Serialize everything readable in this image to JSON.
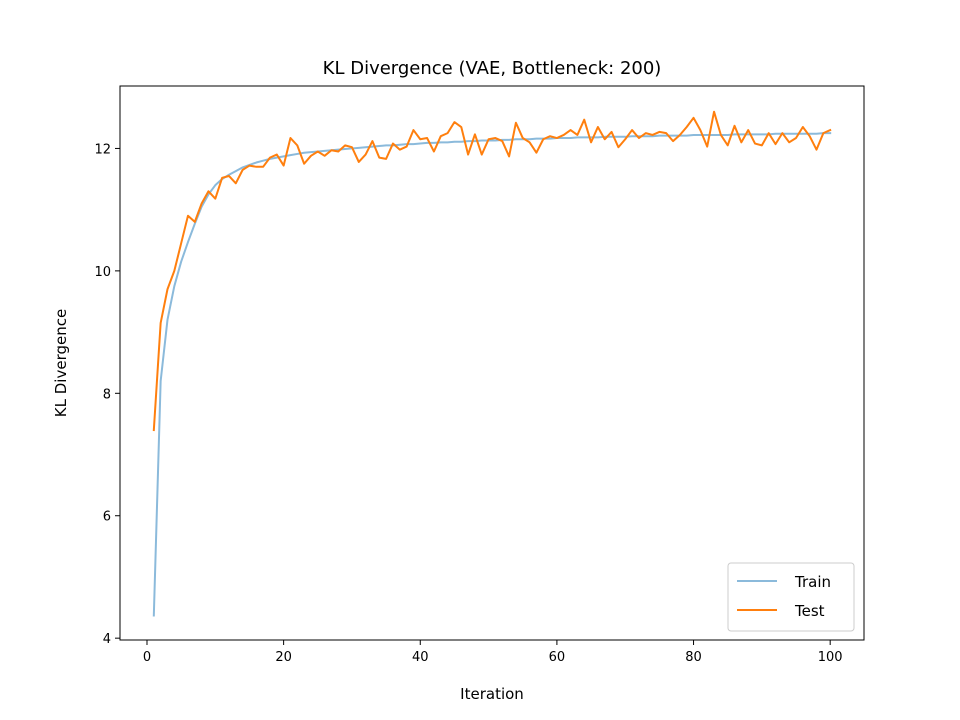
{
  "chart_data": {
    "type": "line",
    "title": "KL Divergence (VAE, Bottleneck: 200)",
    "xlabel": "Iteration",
    "ylabel": "KL Divergence",
    "xlim": [
      -3.95,
      104.95
    ],
    "ylim": [
      3.97,
      13.02
    ],
    "xticks": [
      0,
      20,
      40,
      60,
      80,
      100
    ],
    "yticks": [
      4,
      6,
      8,
      10,
      12
    ],
    "grid": false,
    "legend_position": "lower-right",
    "x": [
      1,
      2,
      3,
      4,
      5,
      6,
      7,
      8,
      9,
      10,
      11,
      12,
      13,
      14,
      15,
      16,
      17,
      18,
      19,
      20,
      21,
      22,
      23,
      24,
      25,
      26,
      27,
      28,
      29,
      30,
      31,
      32,
      33,
      34,
      35,
      36,
      37,
      38,
      39,
      40,
      41,
      42,
      43,
      44,
      45,
      46,
      47,
      48,
      49,
      50,
      51,
      52,
      53,
      54,
      55,
      56,
      57,
      58,
      59,
      60,
      61,
      62,
      63,
      64,
      65,
      66,
      67,
      68,
      69,
      70,
      71,
      72,
      73,
      74,
      75,
      76,
      77,
      78,
      79,
      80,
      81,
      82,
      83,
      84,
      85,
      86,
      87,
      88,
      89,
      90,
      91,
      92,
      93,
      94,
      95,
      96,
      97,
      98,
      99,
      100
    ],
    "series": [
      {
        "name": "Train",
        "color": "#8bbadb",
        "values": [
          4.37,
          8.2,
          9.2,
          9.75,
          10.15,
          10.47,
          10.77,
          11.05,
          11.25,
          11.4,
          11.5,
          11.57,
          11.63,
          11.69,
          11.73,
          11.77,
          11.8,
          11.83,
          11.85,
          11.87,
          11.89,
          11.91,
          11.93,
          11.94,
          11.95,
          11.96,
          11.97,
          11.98,
          11.99,
          12.0,
          12.01,
          12.02,
          12.03,
          12.04,
          12.05,
          12.05,
          12.06,
          12.07,
          12.07,
          12.08,
          12.09,
          12.09,
          12.1,
          12.1,
          12.11,
          12.11,
          12.12,
          12.12,
          12.13,
          12.13,
          12.13,
          12.14,
          12.14,
          12.15,
          12.15,
          12.15,
          12.16,
          12.16,
          12.16,
          12.17,
          12.17,
          12.17,
          12.18,
          12.18,
          12.18,
          12.18,
          12.19,
          12.19,
          12.19,
          12.19,
          12.2,
          12.2,
          12.2,
          12.2,
          12.21,
          12.21,
          12.21,
          12.21,
          12.21,
          12.22,
          12.22,
          12.22,
          12.22,
          12.22,
          12.22,
          12.23,
          12.23,
          12.23,
          12.23,
          12.23,
          12.23,
          12.24,
          12.24,
          12.24,
          12.24,
          12.24,
          12.24,
          12.24,
          12.25,
          12.25
        ]
      },
      {
        "name": "Test",
        "color": "#ff7f0e",
        "values": [
          7.4,
          9.15,
          9.7,
          10.0,
          10.45,
          10.9,
          10.8,
          11.1,
          11.3,
          11.18,
          11.52,
          11.55,
          11.43,
          11.65,
          11.72,
          11.7,
          11.7,
          11.85,
          11.9,
          11.72,
          12.17,
          12.05,
          11.75,
          11.88,
          11.95,
          11.88,
          11.97,
          11.95,
          12.05,
          12.02,
          11.78,
          11.9,
          12.12,
          11.85,
          11.83,
          12.08,
          11.98,
          12.03,
          12.3,
          12.15,
          12.17,
          11.95,
          12.2,
          12.25,
          12.43,
          12.35,
          11.9,
          12.23,
          11.9,
          12.15,
          12.17,
          12.12,
          11.87,
          12.42,
          12.17,
          12.1,
          11.93,
          12.15,
          12.2,
          12.17,
          12.22,
          12.3,
          12.22,
          12.47,
          12.1,
          12.35,
          12.15,
          12.27,
          12.02,
          12.15,
          12.3,
          12.17,
          12.25,
          12.22,
          12.27,
          12.25,
          12.12,
          12.22,
          12.35,
          12.5,
          12.3,
          12.03,
          12.6,
          12.22,
          12.05,
          12.37,
          12.1,
          12.3,
          12.08,
          12.05,
          12.25,
          12.07,
          12.25,
          12.1,
          12.17,
          12.35,
          12.2,
          11.98,
          12.25,
          12.3
        ]
      }
    ]
  }
}
